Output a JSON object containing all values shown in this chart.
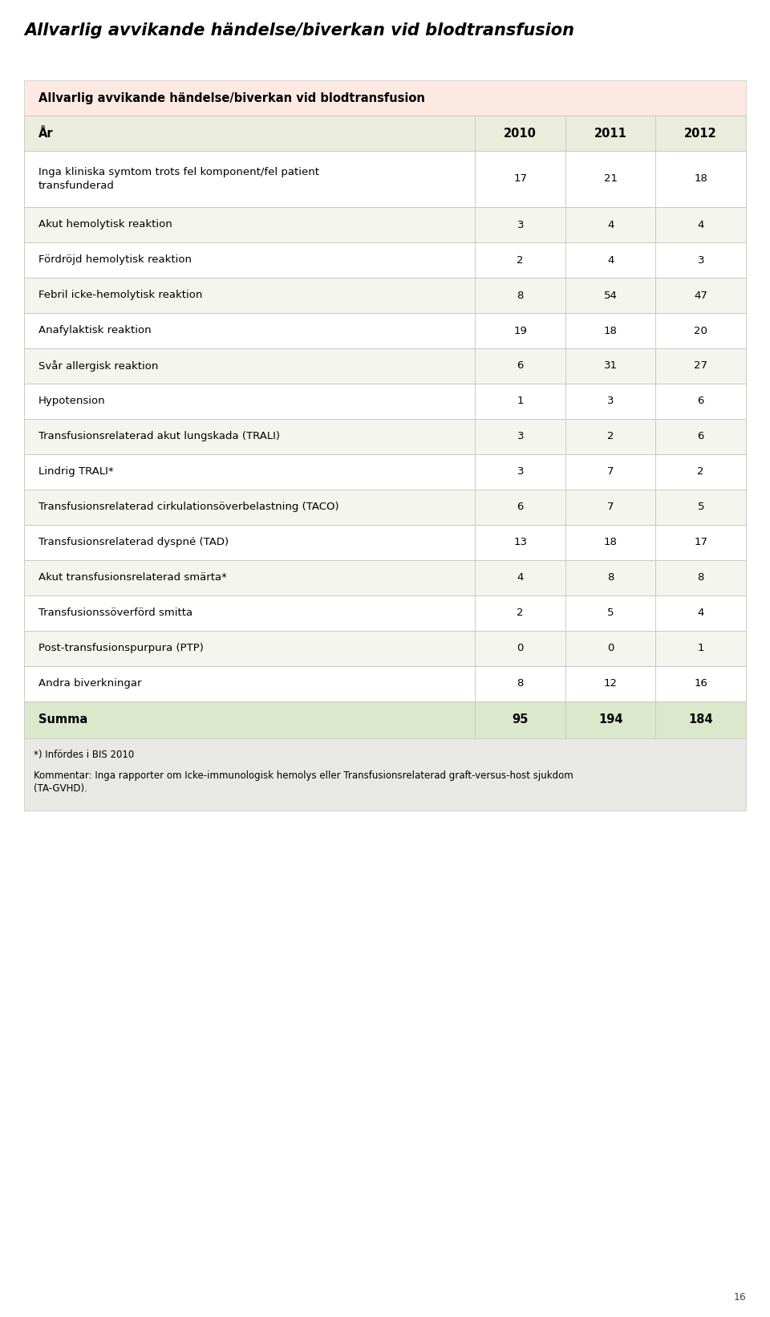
{
  "title": "Allvarlig avvikande händelse/biverkan vid blodtransfusion",
  "table_header": "Allvarlig avvikande händelse/biverkan vid blodtransfusion",
  "col_headers": [
    "År",
    "2010",
    "2011",
    "2012"
  ],
  "rows": [
    [
      "Inga kliniska symtom trots fel komponent/fel patient\ntransfunderad",
      "17",
      "21",
      "18"
    ],
    [
      "Akut hemolytisk reaktion",
      "3",
      "4",
      "4"
    ],
    [
      "Fördröjd hemolytisk reaktion",
      "2",
      "4",
      "3"
    ],
    [
      "Febril icke-hemolytisk reaktion",
      "8",
      "54",
      "47"
    ],
    [
      "Anafylaktisk reaktion",
      "19",
      "18",
      "20"
    ],
    [
      "Svår allergisk reaktion",
      "6",
      "31",
      "27"
    ],
    [
      "Hypotension",
      "1",
      "3",
      "6"
    ],
    [
      "Transfusionsrelaterad akut lungskada (TRALI)",
      "3",
      "2",
      "6"
    ],
    [
      "Lindrig TRALI*",
      "3",
      "7",
      "2"
    ],
    [
      "Transfusionsrelaterad cirkulationsöverbelastning (TACO)",
      "6",
      "7",
      "5"
    ],
    [
      "Transfusionsrelaterad dyspné (TAD)",
      "13",
      "18",
      "17"
    ],
    [
      "Akut transfusionsrelaterad smärta*",
      "4",
      "8",
      "8"
    ],
    [
      "Transfusionssöverförd smitta",
      "2",
      "5",
      "4"
    ],
    [
      "Post-transfusionspurpura (PTP)",
      "0",
      "0",
      "1"
    ],
    [
      "Andra biverkningar",
      "8",
      "12",
      "16"
    ]
  ],
  "summary_row": [
    "Summa",
    "95",
    "194",
    "184"
  ],
  "footnote1": "*) Infördes i BIS 2010",
  "footnote2": "Kommentar: Inga rapporter om Icke-immunologisk hemolys eller Transfusionsrelaterad graft-versus-host sjukdom\n(TA-GVHD).",
  "page_number": "16",
  "bg_color": "#ffffff",
  "header_section_bg": "#fce9e2",
  "col_header_bg": "#eaeddc",
  "row_bg_odd": "#f4f5ee",
  "row_bg_even": "#ffffff",
  "summary_bg": "#dce8cc",
  "footnote_bg": "#e8e8e4",
  "border_color": "#c8c8c0",
  "title_color": "#000000",
  "header_text_color": "#000000",
  "data_text_color": "#000000",
  "summary_text_color": "#000000",
  "title_fontsize": 15,
  "header_fontsize": 10.5,
  "data_fontsize": 9.5,
  "summary_fontsize": 10.5,
  "footnote_fontsize": 8.5,
  "page_number_fontsize": 9
}
